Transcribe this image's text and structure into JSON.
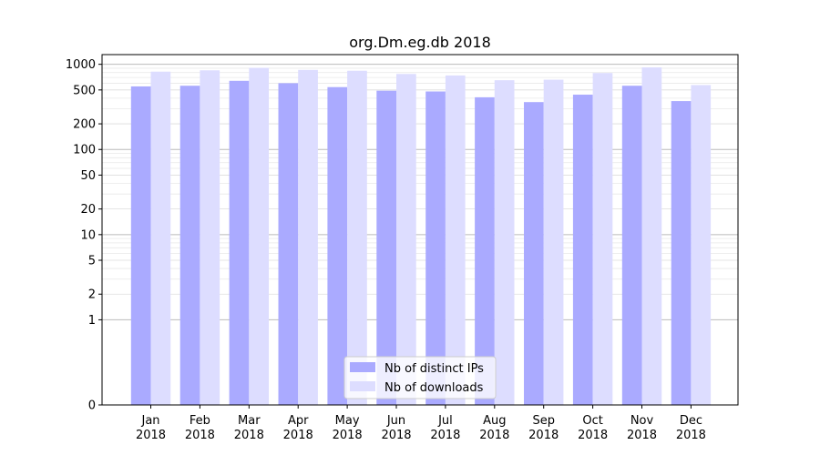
{
  "chart_data": {
    "type": "bar",
    "title": "org.Dm.eg.db 2018",
    "xlabel": "",
    "ylabel": "",
    "yscale": "symlog",
    "ylim": [
      0,
      1300
    ],
    "yticks": [
      0,
      1,
      2,
      5,
      10,
      20,
      50,
      100,
      200,
      500,
      1000
    ],
    "categories": [
      [
        "Jan",
        "2018"
      ],
      [
        "Feb",
        "2018"
      ],
      [
        "Mar",
        "2018"
      ],
      [
        "Apr",
        "2018"
      ],
      [
        "May",
        "2018"
      ],
      [
        "Jun",
        "2018"
      ],
      [
        "Jul",
        "2018"
      ],
      [
        "Aug",
        "2018"
      ],
      [
        "Sep",
        "2018"
      ],
      [
        "Oct",
        "2018"
      ],
      [
        "Nov",
        "2018"
      ],
      [
        "Dec",
        "2018"
      ]
    ],
    "series": [
      {
        "name": "Nb of distinct IPs",
        "color": "#aaaaff",
        "values": [
          550,
          560,
          640,
          600,
          540,
          490,
          480,
          410,
          360,
          440,
          560,
          370
        ]
      },
      {
        "name": "Nb of downloads",
        "color": "#ddddff",
        "values": [
          820,
          850,
          910,
          860,
          840,
          770,
          740,
          650,
          660,
          790,
          920,
          570
        ]
      }
    ],
    "legend_position": "bottom-center",
    "grid": true
  }
}
